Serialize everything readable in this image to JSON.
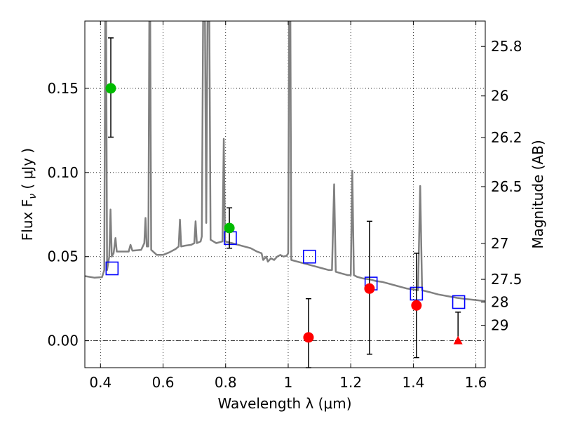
{
  "chart_data": {
    "type": "scatter",
    "xlabel": "Wavelength  λ (μm)",
    "ylabel": "Flux  F",
    "ylabel_sub": "ν",
    "ylabel_unit": " ( μJy )",
    "y2label": "Magnitude (AB)",
    "xlim": [
      0.35,
      1.63
    ],
    "ylim": [
      -0.016,
      0.19
    ],
    "grid": true,
    "x_ticks": [
      {
        "value": 0.4,
        "label": "0.4"
      },
      {
        "value": 0.6,
        "label": "0.6"
      },
      {
        "value": 0.8,
        "label": "0.8"
      },
      {
        "value": 1.0,
        "label": "1"
      },
      {
        "value": 1.2,
        "label": "1.2"
      },
      {
        "value": 1.4,
        "label": "1.4"
      },
      {
        "value": 1.6,
        "label": "1.6"
      }
    ],
    "y_ticks": [
      {
        "value": 0.0,
        "label": "0.00"
      },
      {
        "value": 0.05,
        "label": "0.05"
      },
      {
        "value": 0.1,
        "label": "0.10"
      },
      {
        "value": 0.15,
        "label": "0.15"
      }
    ],
    "y2_ticks": [
      {
        "flux": 0.1749,
        "label": "25.8"
      },
      {
        "flux": 0.1455,
        "label": "26"
      },
      {
        "flux": 0.1208,
        "label": "26.2"
      },
      {
        "flux": 0.0916,
        "label": "26.5"
      },
      {
        "flux": 0.0578,
        "label": "27"
      },
      {
        "flux": 0.0365,
        "label": "27.5"
      },
      {
        "flux": 0.023,
        "label": "28"
      },
      {
        "flux": 0.0092,
        "label": "29"
      }
    ],
    "spectrum": {
      "color": "#808080",
      "points": [
        [
          0.35,
          0.0384
        ],
        [
          0.38,
          0.0375
        ],
        [
          0.405,
          0.0378
        ],
        [
          0.412,
          0.042
        ],
        [
          0.415,
          0.19
        ],
        [
          0.418,
          0.19
        ],
        [
          0.421,
          0.042
        ],
        [
          0.428,
          0.05
        ],
        [
          0.432,
          0.078
        ],
        [
          0.436,
          0.05
        ],
        [
          0.442,
          0.052
        ],
        [
          0.448,
          0.061
        ],
        [
          0.452,
          0.053
        ],
        [
          0.47,
          0.053
        ],
        [
          0.49,
          0.053
        ],
        [
          0.496,
          0.057
        ],
        [
          0.502,
          0.0535
        ],
        [
          0.53,
          0.054
        ],
        [
          0.54,
          0.058
        ],
        [
          0.544,
          0.073
        ],
        [
          0.548,
          0.056
        ],
        [
          0.553,
          0.056
        ],
        [
          0.556,
          0.19
        ],
        [
          0.559,
          0.19
        ],
        [
          0.562,
          0.054
        ],
        [
          0.58,
          0.051
        ],
        [
          0.6,
          0.051
        ],
        [
          0.62,
          0.0525
        ],
        [
          0.64,
          0.0545
        ],
        [
          0.65,
          0.056
        ],
        [
          0.654,
          0.072
        ],
        [
          0.658,
          0.056
        ],
        [
          0.67,
          0.0565
        ],
        [
          0.69,
          0.057
        ],
        [
          0.7,
          0.058
        ],
        [
          0.704,
          0.071
        ],
        [
          0.708,
          0.058
        ],
        [
          0.72,
          0.059
        ],
        [
          0.724,
          0.062
        ],
        [
          0.728,
          0.19
        ],
        [
          0.734,
          0.19
        ],
        [
          0.738,
          0.07
        ],
        [
          0.742,
          0.19
        ],
        [
          0.748,
          0.19
        ],
        [
          0.752,
          0.06
        ],
        [
          0.77,
          0.058
        ],
        [
          0.79,
          0.059
        ],
        [
          0.794,
          0.12
        ],
        [
          0.798,
          0.059
        ],
        [
          0.82,
          0.058
        ],
        [
          0.84,
          0.057
        ],
        [
          0.86,
          0.056
        ],
        [
          0.88,
          0.055
        ],
        [
          0.9,
          0.053
        ],
        [
          0.915,
          0.052
        ],
        [
          0.92,
          0.048
        ],
        [
          0.93,
          0.05
        ],
        [
          0.935,
          0.047
        ],
        [
          0.945,
          0.049
        ],
        [
          0.955,
          0.048
        ],
        [
          0.965,
          0.05
        ],
        [
          0.975,
          0.051
        ],
        [
          0.985,
          0.05
        ],
        [
          0.995,
          0.0505
        ],
        [
          1.0,
          0.052
        ],
        [
          1.003,
          0.19
        ],
        [
          1.007,
          0.19
        ],
        [
          1.01,
          0.048
        ],
        [
          1.03,
          0.047
        ],
        [
          1.05,
          0.046
        ],
        [
          1.07,
          0.045
        ],
        [
          1.09,
          0.044
        ],
        [
          1.11,
          0.043
        ],
        [
          1.13,
          0.042
        ],
        [
          1.14,
          0.042
        ],
        [
          1.147,
          0.093
        ],
        [
          1.152,
          0.041
        ],
        [
          1.17,
          0.04
        ],
        [
          1.19,
          0.039
        ],
        [
          1.2,
          0.039
        ],
        [
          1.205,
          0.101
        ],
        [
          1.21,
          0.039
        ],
        [
          1.22,
          0.038
        ],
        [
          1.24,
          0.037
        ],
        [
          1.26,
          0.0365
        ],
        [
          1.28,
          0.0355
        ],
        [
          1.3,
          0.035
        ],
        [
          1.32,
          0.034
        ],
        [
          1.34,
          0.033
        ],
        [
          1.36,
          0.032
        ],
        [
          1.38,
          0.031
        ],
        [
          1.4,
          0.0305
        ],
        [
          1.415,
          0.03
        ],
        [
          1.422,
          0.092
        ],
        [
          1.428,
          0.03
        ],
        [
          1.45,
          0.029
        ],
        [
          1.48,
          0.0275
        ],
        [
          1.51,
          0.0265
        ],
        [
          1.54,
          0.0255
        ],
        [
          1.57,
          0.0248
        ],
        [
          1.6,
          0.0242
        ],
        [
          1.63,
          0.0235
        ]
      ]
    },
    "green_points": {
      "color": "#00bb00",
      "points": [
        {
          "x": 0.433,
          "y": 0.15,
          "yerr_low": 0.121,
          "yerr_high": 0.18
        },
        {
          "x": 0.812,
          "y": 0.067,
          "yerr_low": 0.055,
          "yerr_high": 0.079
        }
      ]
    },
    "red_points": {
      "color": "#ff0000",
      "points": [
        {
          "x": 1.065,
          "y": 0.002,
          "yerr_low": -0.016,
          "yerr_high": 0.025
        },
        {
          "x": 1.26,
          "y": 0.031,
          "yerr_low": -0.008,
          "yerr_high": 0.071
        },
        {
          "x": 1.41,
          "y": 0.021,
          "yerr_low": -0.01,
          "yerr_high": 0.052
        }
      ]
    },
    "red_upper_limit": {
      "color": "#ff0000",
      "x": 1.543,
      "y": 0.0,
      "yerr_high": 0.017
    },
    "model_squares": {
      "color": "#0000ff",
      "points": [
        {
          "x": 0.437,
          "y": 0.043
        },
        {
          "x": 0.815,
          "y": 0.061
        },
        {
          "x": 1.068,
          "y": 0.05
        },
        {
          "x": 1.265,
          "y": 0.034
        },
        {
          "x": 1.41,
          "y": 0.028
        },
        {
          "x": 1.545,
          "y": 0.023
        }
      ]
    }
  }
}
